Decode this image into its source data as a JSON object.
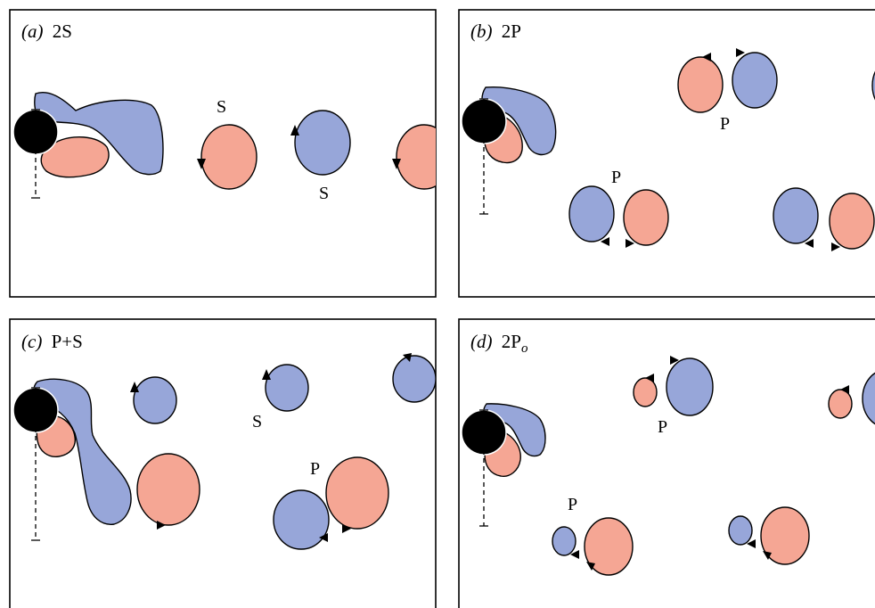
{
  "colors": {
    "blue_vortex": "#97a6d9",
    "red_vortex": "#f5a694",
    "cylinder": "#000000",
    "frame": "#000000"
  },
  "panels": [
    {
      "id": "a",
      "letter": "(a)",
      "mode": "2S",
      "mode_sub": "",
      "labels": [
        "S",
        "S"
      ]
    },
    {
      "id": "b",
      "letter": "(b)",
      "mode": "2P",
      "mode_sub": "",
      "labels": [
        "P",
        "P"
      ]
    },
    {
      "id": "c",
      "letter": "(c)",
      "mode": "P+S",
      "mode_sub": "",
      "labels": [
        "S",
        "P"
      ]
    },
    {
      "id": "d",
      "letter": "(d)",
      "mode": "2P",
      "mode_sub": "o",
      "labels": [
        "P",
        "P"
      ]
    }
  ]
}
